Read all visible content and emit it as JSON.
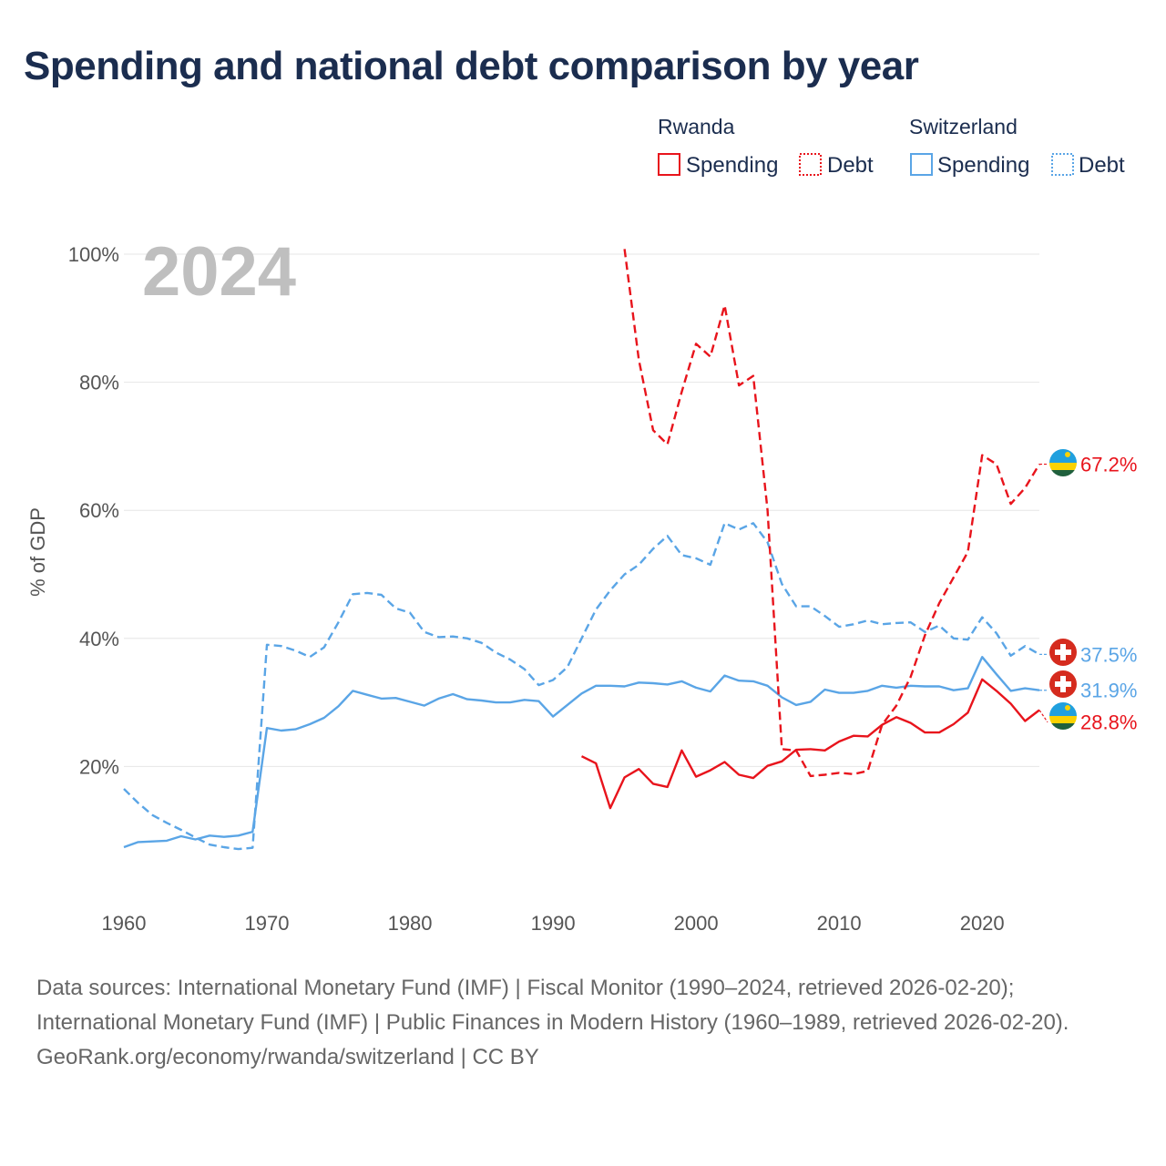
{
  "title": "Spending and national debt comparison by year",
  "year_watermark": "2024",
  "legend": {
    "groups": [
      {
        "name": "Rwanda",
        "color": "#e8141c",
        "items": [
          {
            "label": "Spending",
            "style": "solid"
          },
          {
            "label": "Debt",
            "style": "dotted"
          }
        ]
      },
      {
        "name": "Switzerland",
        "color": "#5aa5e6",
        "items": [
          {
            "label": "Spending",
            "style": "solid"
          },
          {
            "label": "Debt",
            "style": "dotted"
          }
        ]
      }
    ]
  },
  "footer": {
    "sources": "Data sources: International Monetary Fund (IMF) | Fiscal Monitor (1990–2024, retrieved 2026-02-20); International Monetary Fund (IMF) | Public Finances in Modern History (1960–1989, retrieved 2026-02-20).",
    "credit": "GeoRank.org/economy/rwanda/switzerland | CC BY"
  },
  "chart_data": {
    "type": "line",
    "title": "Spending and national debt comparison by year",
    "xlabel": "",
    "ylabel": "% of GDP",
    "xlim": [
      1960,
      2024
    ],
    "ylim": [
      0,
      100
    ],
    "x_ticks": [
      1960,
      1970,
      1980,
      1990,
      2000,
      2010,
      2020
    ],
    "y_ticks": [
      {
        "value": 20,
        "label": "20%"
      },
      {
        "value": 40,
        "label": "40%"
      },
      {
        "value": 60,
        "label": "60%"
      },
      {
        "value": 80,
        "label": "80%"
      },
      {
        "value": 100,
        "label": "100%"
      }
    ],
    "grid": true,
    "series": [
      {
        "name": "Switzerland Debt",
        "country": "Switzerland",
        "metric": "Debt",
        "color": "#5aa5e6",
        "dash": "dashed",
        "end_label": "37.5%",
        "x": [
          1960,
          1961,
          1962,
          1963,
          1964,
          1965,
          1966,
          1967,
          1968,
          1969,
          1970,
          1971,
          1972,
          1973,
          1974,
          1975,
          1976,
          1977,
          1978,
          1979,
          1980,
          1981,
          1982,
          1983,
          1984,
          1985,
          1986,
          1987,
          1988,
          1989,
          1990,
          1991,
          1992,
          1993,
          1994,
          1995,
          1996,
          1997,
          1998,
          1999,
          2000,
          2001,
          2002,
          2003,
          2004,
          2005,
          2006,
          2007,
          2008,
          2009,
          2010,
          2011,
          2012,
          2013,
          2014,
          2015,
          2016,
          2017,
          2018,
          2019,
          2020,
          2021,
          2022,
          2023,
          2024
        ],
        "values": [
          16.5,
          14.3,
          12.4,
          11.2,
          10.1,
          8.9,
          7.8,
          7.4,
          7.1,
          7.3,
          39.0,
          38.8,
          38.1,
          37.1,
          38.6,
          42.5,
          46.9,
          47.1,
          46.8,
          44.7,
          44.0,
          41.0,
          40.2,
          40.3,
          40.0,
          39.3,
          37.8,
          36.7,
          35.2,
          32.7,
          33.5,
          35.5,
          40.0,
          44.5,
          47.5,
          50.0,
          51.5,
          54.0,
          56.0,
          53.0,
          52.5,
          51.5,
          58.0,
          57.0,
          58.0,
          55.0,
          48.5,
          45.0,
          45.0,
          43.5,
          41.8,
          42.2,
          42.8,
          42.2,
          42.4,
          42.5,
          41.0,
          42.0,
          40.0,
          39.8,
          43.3,
          40.8,
          37.3,
          38.8,
          37.5
        ]
      },
      {
        "name": "Switzerland Spending",
        "country": "Switzerland",
        "metric": "Spending",
        "color": "#5aa5e6",
        "dash": "solid",
        "end_label": "31.9%",
        "x": [
          1960,
          1961,
          1962,
          1963,
          1964,
          1965,
          1966,
          1967,
          1968,
          1969,
          1970,
          1971,
          1972,
          1973,
          1974,
          1975,
          1976,
          1977,
          1978,
          1979,
          1980,
          1981,
          1982,
          1983,
          1984,
          1985,
          1986,
          1987,
          1988,
          1989,
          1990,
          1991,
          1992,
          1993,
          1994,
          1995,
          1996,
          1997,
          1998,
          1999,
          2000,
          2001,
          2002,
          2003,
          2004,
          2005,
          2006,
          2007,
          2008,
          2009,
          2010,
          2011,
          2012,
          2013,
          2014,
          2015,
          2016,
          2017,
          2018,
          2019,
          2020,
          2021,
          2022,
          2023,
          2024
        ],
        "values": [
          7.4,
          8.2,
          8.3,
          8.4,
          9.1,
          8.6,
          9.2,
          9.0,
          9.2,
          9.8,
          26.0,
          25.6,
          25.8,
          26.6,
          27.6,
          29.4,
          31.8,
          31.2,
          30.6,
          30.7,
          30.1,
          29.5,
          30.6,
          31.3,
          30.5,
          30.3,
          30.0,
          30.0,
          30.4,
          30.2,
          27.8,
          29.6,
          31.4,
          32.6,
          32.6,
          32.5,
          33.1,
          33.0,
          32.8,
          33.3,
          32.3,
          31.7,
          34.2,
          33.4,
          33.3,
          32.6,
          30.8,
          29.6,
          30.1,
          32.0,
          31.5,
          31.5,
          31.8,
          32.6,
          32.3,
          32.6,
          32.5,
          32.5,
          31.9,
          32.2,
          37.1,
          34.4,
          31.8,
          32.2,
          31.9
        ]
      },
      {
        "name": "Rwanda Debt",
        "country": "Rwanda",
        "metric": "Debt",
        "color": "#e8141c",
        "dash": "dashed",
        "end_label": "67.2%",
        "x": [
          1995,
          1996,
          1997,
          1998,
          1999,
          2000,
          2001,
          2002,
          2003,
          2004,
          2005,
          2006,
          2007,
          2008,
          2009,
          2010,
          2011,
          2012,
          2013,
          2014,
          2015,
          2016,
          2017,
          2018,
          2019,
          2020,
          2021,
          2022,
          2023,
          2024
        ],
        "values": [
          100.8,
          83.5,
          72.5,
          70.3,
          78.5,
          86.0,
          84.0,
          92.0,
          79.5,
          81.0,
          60.0,
          22.7,
          22.5,
          18.5,
          18.7,
          19.0,
          18.8,
          19.3,
          26.5,
          29.5,
          34.0,
          40.5,
          45.5,
          49.5,
          53.5,
          68.6,
          67.2,
          61.0,
          63.5,
          67.2
        ]
      },
      {
        "name": "Rwanda Spending",
        "country": "Rwanda",
        "metric": "Spending",
        "color": "#e8141c",
        "dash": "solid",
        "end_label": "28.8%",
        "x": [
          1992,
          1993,
          1994,
          1995,
          1996,
          1997,
          1998,
          1999,
          2000,
          2001,
          2002,
          2003,
          2004,
          2005,
          2006,
          2007,
          2008,
          2009,
          2010,
          2011,
          2012,
          2013,
          2014,
          2015,
          2016,
          2017,
          2018,
          2019,
          2020,
          2021,
          2022,
          2023,
          2024
        ],
        "values": [
          21.6,
          20.5,
          13.5,
          18.3,
          19.6,
          17.3,
          16.8,
          22.5,
          18.4,
          19.4,
          20.7,
          18.7,
          18.2,
          20.1,
          20.8,
          22.6,
          22.7,
          22.5,
          23.9,
          24.8,
          24.7,
          26.5,
          27.7,
          26.8,
          25.3,
          25.3,
          26.6,
          28.4,
          33.6,
          31.8,
          29.8,
          27.1,
          28.8
        ]
      }
    ]
  }
}
